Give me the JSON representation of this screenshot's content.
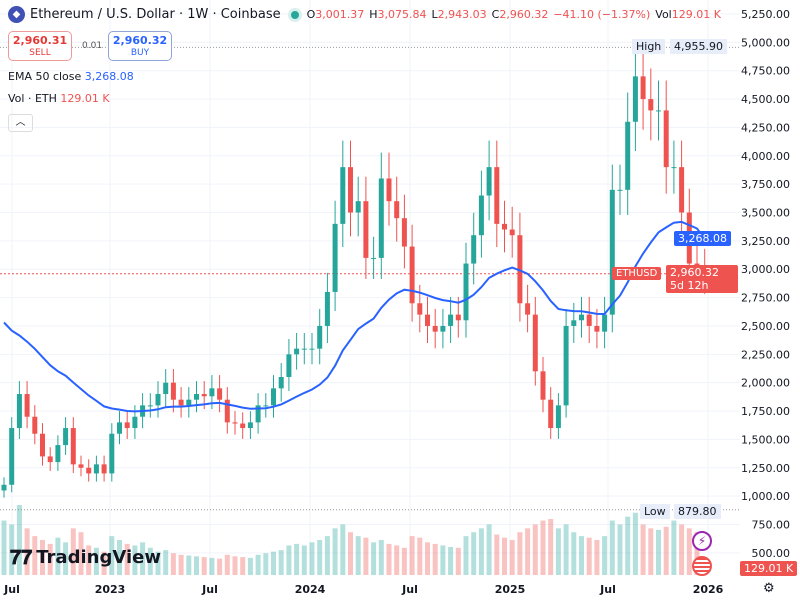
{
  "header": {
    "title": "Ethereum / U.S. Dollar · 1W · Coinbase",
    "open_label": "O",
    "open": "3,001.37",
    "high_label": "H",
    "high": "3,075.84",
    "low_label": "L",
    "low": "2,943.03",
    "close_label": "C",
    "close": "2,960.32",
    "change": "−41.10 (−1.37%)",
    "vol_label": "Vol",
    "vol": "129.01 K"
  },
  "trade": {
    "sell_price": "2,960.31",
    "sell_label": "SELL",
    "spread": "0.01",
    "buy_price": "2,960.32",
    "buy_label": "BUY"
  },
  "legend": {
    "ema_label": "EMA 50 close",
    "ema_value": "3,268.08",
    "vol_label": "Vol · ETH",
    "vol_value": "129.01 K"
  },
  "collapse_icon": "chevron-up-icon",
  "price_tags": {
    "high_label": "High",
    "high_value": "4,955.90",
    "low_label": "Low",
    "low_value": "879.80",
    "ema_tag": "3,268.08",
    "symbol": "ETHUSD",
    "last": "2,960.32",
    "countdown": "5d 12h",
    "volume_tag": "129.01 K"
  },
  "brand": "TradingView",
  "colors": {
    "up": "#26a69a",
    "down": "#ef5350",
    "ema": "#2962ff"
  },
  "chart_data": {
    "type": "candlestick",
    "interval": "1W",
    "y_ticks": [
      "5,250.00",
      "5,000.00",
      "4,750.00",
      "4,500.00",
      "4,250.00",
      "4,000.00",
      "3,750.00",
      "3,500.00",
      "3,250.00",
      "3,000.00",
      "2,750.00",
      "2,500.00",
      "2,250.00",
      "2,000.00",
      "1,750.00",
      "1,500.00",
      "1,250.00",
      "1,000.00",
      "750.00",
      "500.00"
    ],
    "ylim": [
      500,
      5250
    ],
    "x_ticks": [
      "Jul",
      "2023",
      "Jul",
      "2024",
      "Jul",
      "2025",
      "Jul",
      "2026"
    ],
    "closes": [
      1100,
      1600,
      1900,
      1700,
      1550,
      1350,
      1300,
      1450,
      1600,
      1280,
      1250,
      1200,
      1280,
      1200,
      1550,
      1650,
      1600,
      1700,
      1800,
      1800,
      1900,
      2000,
      1850,
      1800,
      1850,
      1900,
      1880,
      1950,
      1850,
      1650,
      1640,
      1600,
      1650,
      1800,
      1800,
      1950,
      2050,
      2250,
      2300,
      2300,
      2300,
      2500,
      2800,
      3400,
      3900,
      3500,
      3600,
      3100,
      3100,
      3800,
      3600,
      3450,
      3200,
      2700,
      2600,
      2500,
      2450,
      2500,
      2600,
      2550,
      3050,
      3300,
      3650,
      3900,
      3400,
      3350,
      3300,
      2700,
      2600,
      2100,
      1850,
      1600,
      1800,
      2500,
      2550,
      2600,
      2500,
      2450,
      2600,
      3700,
      3700,
      4300,
      4700,
      4500,
      4400,
      4400,
      3900,
      3900,
      3500,
      3050,
      3000,
      2960.32
    ],
    "volumes_k": [
      700,
      650,
      900,
      600,
      500,
      450,
      400,
      480,
      420,
      600,
      550,
      380,
      350,
      300,
      500,
      450,
      400,
      380,
      420,
      350,
      300,
      320,
      280,
      260,
      250,
      240,
      230,
      220,
      210,
      260,
      240,
      230,
      220,
      260,
      280,
      300,
      320,
      380,
      400,
      380,
      420,
      450,
      500,
      600,
      650,
      550,
      500,
      480,
      420,
      450,
      400,
      380,
      350,
      500,
      480,
      420,
      400,
      380,
      360,
      350,
      500,
      550,
      600,
      650,
      520,
      480,
      450,
      550,
      600,
      650,
      700,
      720,
      600,
      650,
      550,
      500,
      480,
      450,
      500,
      700,
      650,
      750,
      800,
      650,
      600,
      580,
      620,
      700,
      650,
      600,
      550,
      129.01
    ],
    "ema_period": 50,
    "ema_last": 3268.08,
    "high": 4955.9,
    "low": 879.8,
    "last": 2960.32
  }
}
